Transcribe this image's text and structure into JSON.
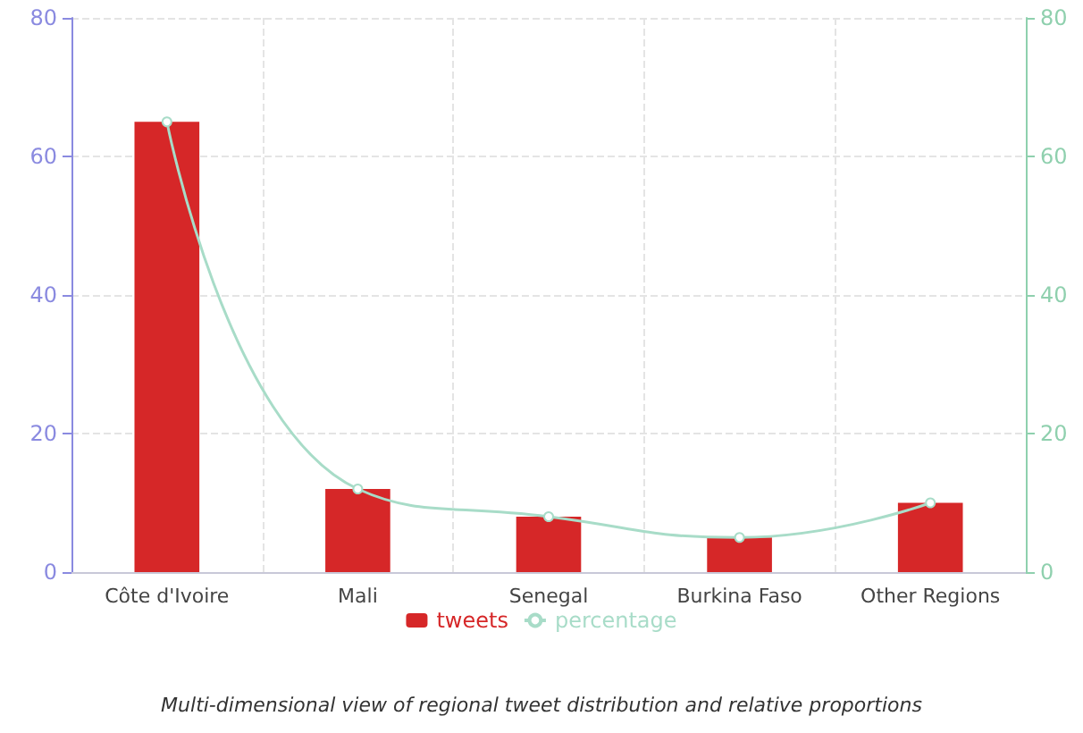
{
  "chart_data": {
    "type": "bar",
    "categories": [
      "Côte d'Ivoire",
      "Mali",
      "Senegal",
      "Burkina Faso",
      "Other Regions"
    ],
    "series": [
      {
        "name": "tweets",
        "color": "#d62728",
        "values": [
          65,
          12,
          8,
          5,
          10
        ]
      },
      {
        "name": "percentage",
        "type": "line",
        "axis": "y2",
        "color": "#a8dcc8",
        "values": [
          65,
          12,
          8,
          5,
          10
        ]
      }
    ],
    "ylim": [
      0,
      80
    ],
    "yticks": [
      0,
      20,
      40,
      60,
      80
    ],
    "y2lim": [
      0,
      80
    ],
    "y2ticks": [
      0,
      20,
      40,
      60,
      80
    ],
    "grid": true,
    "legend": "bottom",
    "marker": "circle",
    "annotations": [
      "Multi-dimensional view of regional tweet distribution and relative proportions"
    ]
  }
}
